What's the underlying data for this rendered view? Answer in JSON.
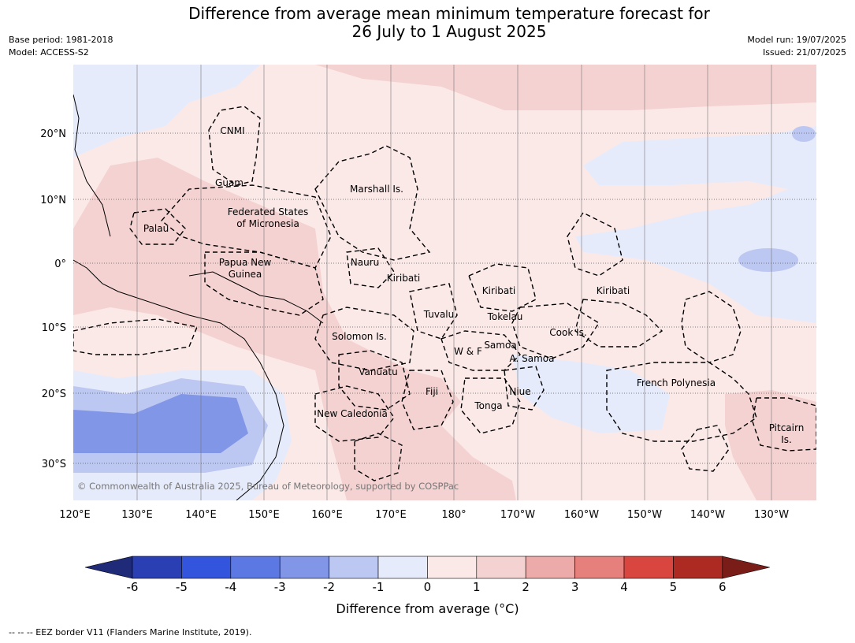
{
  "title_line1": "Difference from average mean minimum temperature forecast for",
  "title_line2": "26 July to 1 August 2025",
  "meta_left": [
    "Base period: 1981-2018",
    "Model: ACCESS-S2"
  ],
  "meta_right": [
    "Model run: 19/07/2025",
    "Issued: 21/07/2025"
  ],
  "lat_labels": [
    "20°N",
    "10°N",
    "0°",
    "10°S",
    "20°S",
    "30°S"
  ],
  "lon_labels": [
    "120°E",
    "130°E",
    "140°E",
    "150°E",
    "160°E",
    "170°E",
    "180°",
    "170°W",
    "160°W",
    "150°W",
    "140°W",
    "130°W"
  ],
  "region_labels": [
    "CNMI",
    "Guam",
    "Marshall Is.",
    "Federated States",
    "of Micronesia",
    "Palau",
    "Papua New",
    "Guinea",
    "Nauru",
    "Kiribati",
    "Kiribati",
    "Kiribati",
    "Tuvalu",
    "Tokelau",
    "Solomon Is.",
    "Cook Is.",
    "Samoa",
    "W & F",
    "A. Samoa",
    "Vanuatu",
    "Fiji",
    "Niue",
    "Tonga",
    "French Polynesia",
    "New Caledonia",
    "Pitcairn",
    "Is."
  ],
  "copyright": "© Commonwealth of Australia 2025, Bureau of Meteorology, supported by COSPPac",
  "colorbar": {
    "ticks": [
      "-6",
      "-5",
      "-4",
      "-3",
      "-2",
      "-1",
      "0",
      "1",
      "2",
      "3",
      "4",
      "5",
      "6"
    ],
    "colors": [
      "#1f2a78",
      "#2b3fb5",
      "#3355dd",
      "#5b78e3",
      "#8296e8",
      "#bcc7f2",
      "#e6ebfb",
      "#fbe9e8",
      "#f5d2d2",
      "#ecaaa8",
      "#e5807d",
      "#d9463f",
      "#ac2a22",
      "#7a1c18"
    ],
    "title": "Difference from average (°C)"
  },
  "map_colors": {
    "light_blue": "#e6ebfb",
    "mid_blue": "#bcc7f2",
    "dark_blue": "#8296e8",
    "light_red": "#fbe9e8",
    "mid_red": "#f5d2d2",
    "dark_red": "#ecaaa8"
  },
  "footnote": "-- -- -- EEZ border V11 (Flanders Marine Institute, 2019)."
}
